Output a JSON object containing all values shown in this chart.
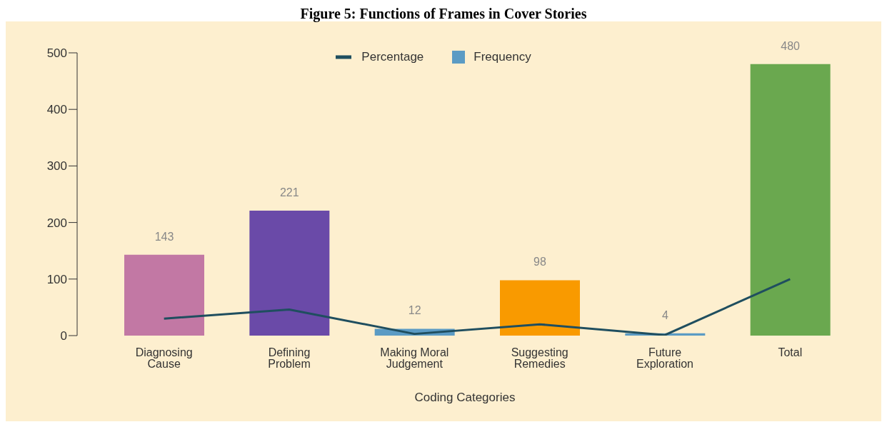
{
  "chart_data": {
    "type": "bar",
    "title": "Figure 5: Functions of Frames in Cover Stories",
    "xlabel": "Coding Categories",
    "categories": [
      "Diagnosing Cause",
      "Defining Problem",
      "Making Moral Judgement",
      "Suggesting Remedies",
      "Future Exploration",
      "Total"
    ],
    "series": [
      {
        "name": "Percentage",
        "type": "line",
        "color": "#1f4e5f",
        "values": [
          30,
          46,
          3,
          20,
          1,
          100
        ]
      },
      {
        "name": "Frequency",
        "color": "#5b9bc4",
        "colors": [
          "#c278a4",
          "#6a4aa8",
          "#5b9bc4",
          "#f99a00",
          "#5b9bc4",
          "#6aa84f"
        ],
        "values": [
          143,
          221,
          12,
          98,
          4,
          480
        ],
        "value_labels": [
          "143",
          "221",
          "12",
          "98",
          "4",
          "480"
        ]
      }
    ],
    "ylim": [
      0,
      500
    ],
    "yticks": [
      0,
      100,
      200,
      300,
      400,
      500
    ],
    "legend": "top"
  }
}
